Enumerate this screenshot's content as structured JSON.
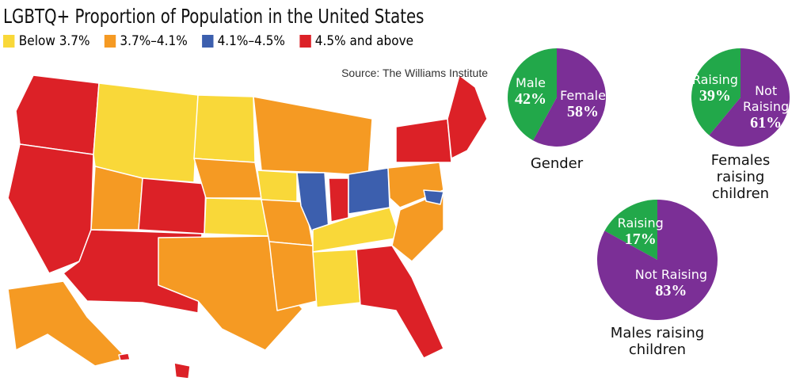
{
  "map": {
    "title": "LGBTQ+ Proportion of Population in the United States",
    "source": "Source: The Williams Institute",
    "legend": [
      {
        "label": "Below 3.7%",
        "color": "#f9d839"
      },
      {
        "label": "3.7%–4.1%",
        "color": "#f59a23"
      },
      {
        "label": "4.1%–4.5%",
        "color": "#3c5fae"
      },
      {
        "label": "4.5% and above",
        "color": "#dc2127"
      }
    ]
  },
  "chart_data": [
    {
      "type": "pie",
      "title": "Gender",
      "categories": [
        "Male",
        "Female"
      ],
      "values": [
        42,
        58
      ],
      "value_labels": [
        "42%",
        "58%"
      ],
      "colors": [
        "#22a84a",
        "#7b2f96"
      ]
    },
    {
      "type": "pie",
      "title": "Females raising children",
      "categories": [
        "Raising",
        "Not Raising"
      ],
      "values": [
        39,
        61
      ],
      "value_labels": [
        "39%",
        "61%"
      ],
      "colors": [
        "#22a84a",
        "#7b2f96"
      ]
    },
    {
      "type": "pie",
      "title": "Males raising children",
      "categories": [
        "Raising",
        "Not Raising"
      ],
      "values": [
        17,
        83
      ],
      "value_labels": [
        "17%",
        "83%"
      ],
      "colors": [
        "#22a84a",
        "#7b2f96"
      ]
    }
  ]
}
